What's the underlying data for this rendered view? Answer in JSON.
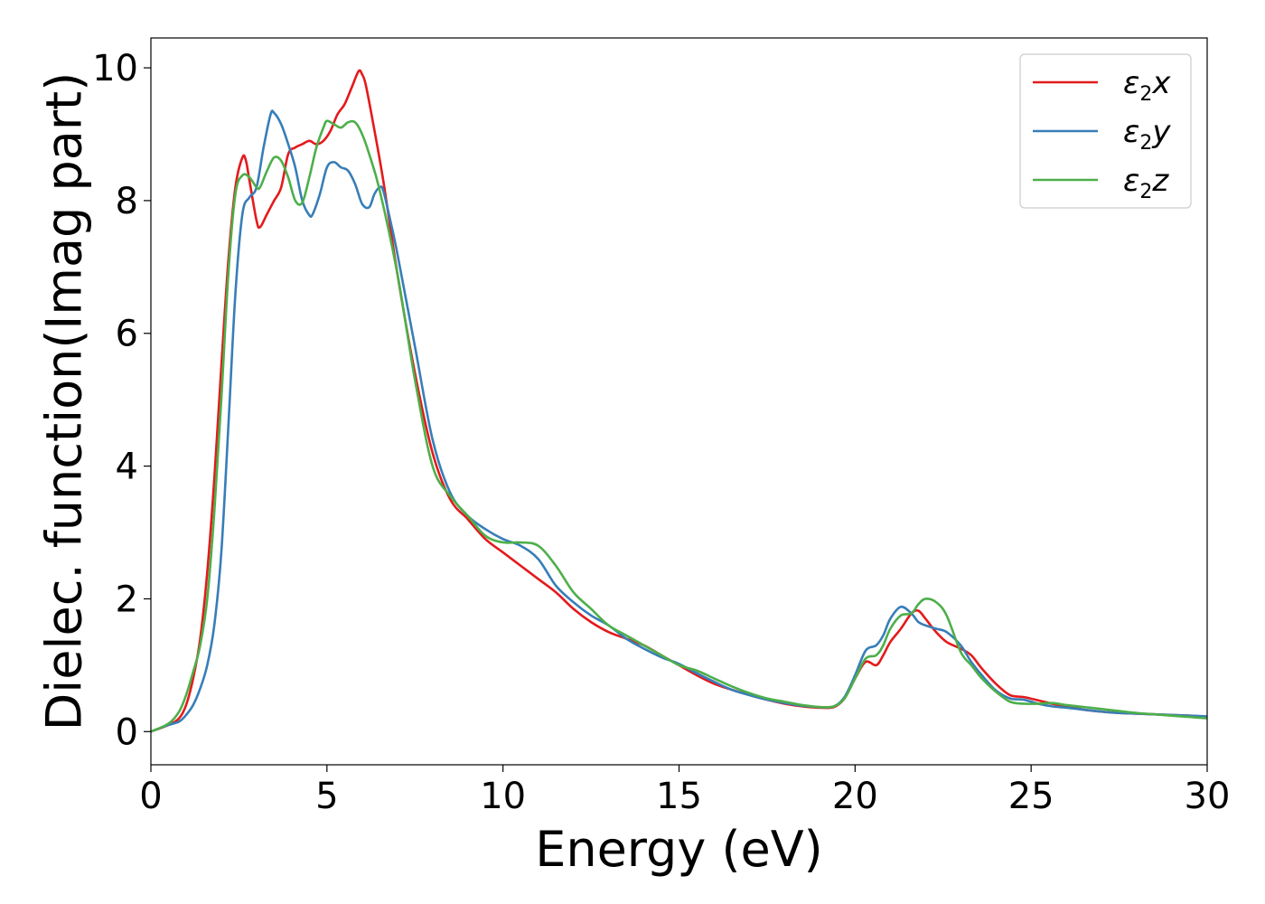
{
  "chart_data": {
    "type": "line",
    "title": "",
    "xlabel": "Energy (eV)",
    "ylabel": "Dielec. function(Imag part)",
    "xlim": [
      0,
      30
    ],
    "ylim": [
      -0.5,
      10.45
    ],
    "xticks": [
      0,
      5,
      10,
      15,
      20,
      25,
      30
    ],
    "yticks": [
      0,
      2,
      4,
      6,
      8,
      10
    ],
    "grid": false,
    "legend_position": "top-right",
    "series": [
      {
        "name": "ε2x",
        "legend_base": "ε",
        "legend_sub": "2",
        "legend_suffix": "x",
        "color": "#e41a1c",
        "x": [
          0,
          0.5,
          0.8,
          1.0,
          1.2,
          1.4,
          1.6,
          1.8,
          2.0,
          2.2,
          2.4,
          2.6,
          2.7,
          2.8,
          3.0,
          3.1,
          3.3,
          3.5,
          3.7,
          3.9,
          4.1,
          4.3,
          4.5,
          4.7,
          4.9,
          5.1,
          5.3,
          5.5,
          5.7,
          5.9,
          6.0,
          6.1,
          6.3,
          6.6,
          7.0,
          7.5,
          8.0,
          8.5,
          9.0,
          9.5,
          10.0,
          10.5,
          11.0,
          11.5,
          12.0,
          12.5,
          13.0,
          13.5,
          14.0,
          14.5,
          15.0,
          15.5,
          16.0,
          16.5,
          17.0,
          17.5,
          18.0,
          18.5,
          19.0,
          19.4,
          19.7,
          20.0,
          20.3,
          20.6,
          20.8,
          21.0,
          21.3,
          21.6,
          21.8,
          22.0,
          22.3,
          22.6,
          23.0,
          23.3,
          23.6,
          24.0,
          24.4,
          24.8,
          25.2,
          25.6,
          26.0,
          26.5,
          27.0,
          27.5,
          28.0,
          28.5,
          29.0,
          29.5,
          30.0
        ],
        "y": [
          0,
          0.1,
          0.2,
          0.4,
          0.8,
          1.4,
          2.4,
          3.8,
          5.5,
          7.1,
          8.2,
          8.65,
          8.6,
          8.3,
          7.7,
          7.6,
          7.8,
          8.0,
          8.2,
          8.7,
          8.8,
          8.85,
          8.9,
          8.85,
          8.9,
          9.05,
          9.3,
          9.45,
          9.7,
          9.95,
          9.9,
          9.75,
          9.2,
          8.3,
          6.9,
          5.4,
          4.2,
          3.5,
          3.2,
          2.9,
          2.7,
          2.5,
          2.3,
          2.1,
          1.85,
          1.65,
          1.5,
          1.4,
          1.3,
          1.15,
          1.0,
          0.85,
          0.72,
          0.63,
          0.55,
          0.48,
          0.42,
          0.38,
          0.36,
          0.37,
          0.5,
          0.8,
          1.05,
          1.0,
          1.15,
          1.35,
          1.55,
          1.78,
          1.82,
          1.7,
          1.5,
          1.35,
          1.25,
          1.15,
          0.95,
          0.72,
          0.55,
          0.52,
          0.47,
          0.42,
          0.38,
          0.33,
          0.3,
          0.28,
          0.27,
          0.26,
          0.25,
          0.24,
          0.22
        ]
      },
      {
        "name": "ε2y",
        "legend_base": "ε",
        "legend_sub": "2",
        "legend_suffix": "y",
        "color": "#377eb8",
        "x": [
          0,
          0.5,
          0.8,
          1.0,
          1.2,
          1.4,
          1.6,
          1.8,
          2.0,
          2.2,
          2.4,
          2.6,
          2.8,
          3.0,
          3.2,
          3.4,
          3.5,
          3.7,
          3.9,
          4.1,
          4.3,
          4.5,
          4.6,
          4.8,
          5.0,
          5.2,
          5.4,
          5.6,
          5.8,
          6.0,
          6.2,
          6.35,
          6.5,
          6.6,
          6.8,
          7.0,
          7.5,
          8.0,
          8.5,
          9.0,
          9.5,
          10.0,
          10.5,
          11.0,
          11.5,
          12.0,
          12.5,
          13.0,
          13.5,
          14.0,
          14.5,
          15.0,
          15.5,
          16.0,
          16.5,
          17.0,
          17.5,
          18.0,
          18.5,
          19.0,
          19.4,
          19.7,
          20.0,
          20.3,
          20.6,
          20.8,
          21.0,
          21.3,
          21.6,
          21.8,
          22.0,
          22.3,
          22.6,
          23.0,
          23.3,
          23.6,
          24.0,
          24.4,
          24.8,
          25.2,
          25.6,
          26.0,
          26.5,
          27.0,
          27.5,
          28.0,
          28.5,
          29.0,
          29.5,
          30.0
        ],
        "y": [
          0,
          0.1,
          0.15,
          0.25,
          0.4,
          0.65,
          1.0,
          1.6,
          2.7,
          4.6,
          6.6,
          7.8,
          8.05,
          8.2,
          8.8,
          9.3,
          9.32,
          9.15,
          8.85,
          8.5,
          8.0,
          7.78,
          7.8,
          8.1,
          8.5,
          8.58,
          8.5,
          8.45,
          8.25,
          7.95,
          7.9,
          8.1,
          8.2,
          8.15,
          7.7,
          7.2,
          5.8,
          4.4,
          3.6,
          3.25,
          3.05,
          2.9,
          2.8,
          2.6,
          2.2,
          1.95,
          1.75,
          1.6,
          1.4,
          1.25,
          1.12,
          1.02,
          0.88,
          0.75,
          0.63,
          0.55,
          0.48,
          0.43,
          0.39,
          0.37,
          0.38,
          0.52,
          0.85,
          1.22,
          1.3,
          1.45,
          1.7,
          1.88,
          1.78,
          1.65,
          1.6,
          1.55,
          1.5,
          1.3,
          1.05,
          0.85,
          0.62,
          0.5,
          0.48,
          0.42,
          0.38,
          0.36,
          0.33,
          0.3,
          0.28,
          0.27,
          0.26,
          0.25,
          0.24,
          0.23
        ]
      },
      {
        "name": "ε2z",
        "legend_base": "ε",
        "legend_sub": "2",
        "legend_suffix": "z",
        "color": "#4daf4a",
        "x": [
          0,
          0.5,
          0.8,
          1.0,
          1.2,
          1.4,
          1.6,
          1.8,
          2.0,
          2.2,
          2.4,
          2.6,
          2.8,
          3.0,
          3.1,
          3.3,
          3.5,
          3.7,
          3.9,
          4.1,
          4.3,
          4.5,
          4.7,
          4.9,
          5.0,
          5.2,
          5.4,
          5.6,
          5.8,
          6.0,
          6.2,
          6.5,
          7.0,
          7.5,
          8.0,
          8.5,
          9.0,
          9.5,
          10.0,
          10.5,
          11.0,
          11.5,
          12.0,
          12.5,
          13.0,
          13.5,
          14.0,
          14.5,
          15.0,
          15.5,
          16.0,
          16.5,
          17.0,
          17.5,
          18.0,
          18.5,
          19.0,
          19.4,
          19.7,
          20.0,
          20.3,
          20.6,
          20.8,
          21.0,
          21.3,
          21.6,
          21.8,
          22.0,
          22.3,
          22.6,
          23.0,
          23.3,
          23.6,
          24.0,
          24.4,
          24.8,
          25.2,
          25.6,
          26.0,
          26.5,
          27.0,
          27.5,
          28.0,
          28.5,
          29.0,
          29.5,
          30.0
        ],
        "y": [
          0,
          0.12,
          0.3,
          0.55,
          0.9,
          1.3,
          2.0,
          3.3,
          5.0,
          6.9,
          8.1,
          8.38,
          8.35,
          8.2,
          8.2,
          8.45,
          8.65,
          8.6,
          8.35,
          8.0,
          7.97,
          8.35,
          8.8,
          9.1,
          9.2,
          9.15,
          9.1,
          9.18,
          9.18,
          9.0,
          8.7,
          8.15,
          6.9,
          5.3,
          4.0,
          3.55,
          3.25,
          2.95,
          2.85,
          2.85,
          2.8,
          2.5,
          2.1,
          1.85,
          1.6,
          1.45,
          1.3,
          1.15,
          1.0,
          0.92,
          0.8,
          0.68,
          0.58,
          0.5,
          0.45,
          0.4,
          0.37,
          0.38,
          0.5,
          0.8,
          1.1,
          1.15,
          1.3,
          1.55,
          1.75,
          1.78,
          1.92,
          2.0,
          1.95,
          1.75,
          1.2,
          1.0,
          0.8,
          0.6,
          0.45,
          0.42,
          0.42,
          0.43,
          0.4,
          0.37,
          0.34,
          0.31,
          0.28,
          0.26,
          0.24,
          0.22,
          0.2
        ]
      }
    ]
  }
}
